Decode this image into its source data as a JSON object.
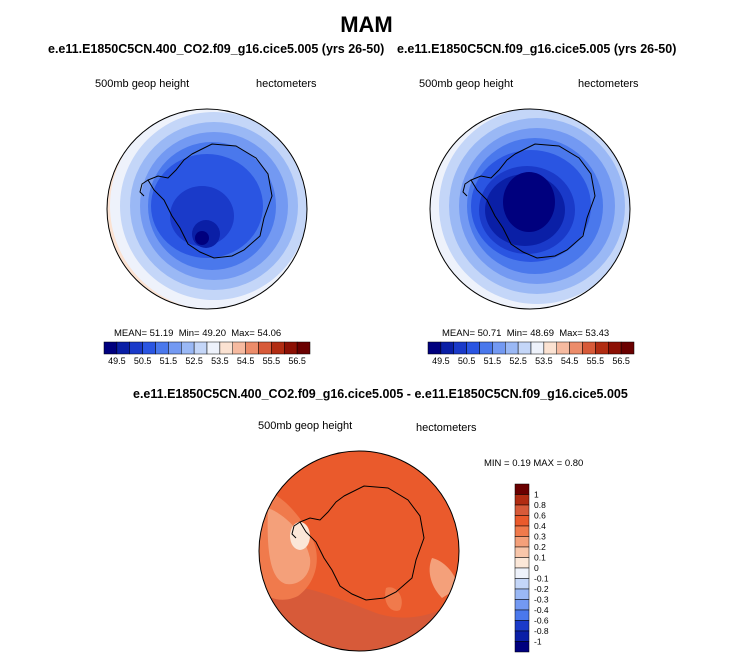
{
  "page": {
    "title": "MAM"
  },
  "panels": [
    {
      "title": "e.e11.E1850C5CN.400_CO2.f09_g16.cice5.005 (yrs 26-50)",
      "left_label": "500mb geop height",
      "right_label": "hectometers",
      "stats": {
        "mean_label": "MEAN=",
        "mean": "51.19",
        "min_label": "Min=",
        "min": "49.20",
        "max_label": "Max=",
        "max": "54.06"
      }
    },
    {
      "title": "e.e11.E1850C5CN.f09_g16.cice5.005 (yrs 26-50)",
      "left_label": "500mb geop height",
      "right_label": "hectometers",
      "stats": {
        "mean_label": "MEAN=",
        "mean": "50.71",
        "min_label": "Min=",
        "min": "48.69",
        "max_label": "Max=",
        "max": "53.43"
      }
    },
    {
      "title": "e.e11.E1850C5CN.400_CO2.f09_g16.cice5.005 - e.e11.E1850C5CN.f09_g16.cice5.005",
      "left_label": "500mb geop height",
      "right_label": "hectometers",
      "stats": {
        "min_label": "MIN =",
        "min": "0.19",
        "max_label": "MAX =",
        "max": "0.80"
      }
    }
  ],
  "chart_data": [
    {
      "type": "heatmap",
      "projection": "south-polar-stereographic",
      "variable": "500mb geop height",
      "units": "hectometers",
      "colorbar_orientation": "horizontal",
      "contour_levels": [
        49.5,
        50,
        50.5,
        51,
        51.5,
        52,
        52.5,
        53,
        53.5,
        54,
        54.5,
        55,
        55.5,
        56,
        56.5
      ],
      "tick_labels": [
        "49.5",
        "50.5",
        "51.5",
        "52.5",
        "53.5",
        "54.5",
        "55.5",
        "56.5"
      ],
      "colors": [
        "#00007e",
        "#0a1fa6",
        "#1a3ac9",
        "#2a55e2",
        "#4a78ec",
        "#7399f2",
        "#9ab8f5",
        "#c4d6f8",
        "#eef2fb",
        "#fbe2d2",
        "#f6baa0",
        "#ec8c6a",
        "#d75a39",
        "#b12c12",
        "#8c1004",
        "#6a0000"
      ],
      "min_value": 49.2,
      "max_value": 54.06,
      "mean_value": 51.19
    },
    {
      "type": "heatmap",
      "projection": "south-polar-stereographic",
      "variable": "500mb geop height",
      "units": "hectometers",
      "colorbar_orientation": "horizontal",
      "contour_levels": [
        49.5,
        50,
        50.5,
        51,
        51.5,
        52,
        52.5,
        53,
        53.5,
        54,
        54.5,
        55,
        55.5,
        56,
        56.5
      ],
      "tick_labels": [
        "49.5",
        "50.5",
        "51.5",
        "52.5",
        "53.5",
        "54.5",
        "55.5",
        "56.5"
      ],
      "colors": [
        "#00007e",
        "#0a1fa6",
        "#1a3ac9",
        "#2a55e2",
        "#4a78ec",
        "#7399f2",
        "#9ab8f5",
        "#c4d6f8",
        "#eef2fb",
        "#fbe2d2",
        "#f6baa0",
        "#ec8c6a",
        "#d75a39",
        "#b12c12",
        "#8c1004",
        "#6a0000"
      ],
      "min_value": 48.69,
      "max_value": 53.43,
      "mean_value": 50.71
    },
    {
      "type": "heatmap",
      "projection": "south-polar-stereographic",
      "variable": "500mb geop height difference",
      "units": "hectometers",
      "colorbar_orientation": "vertical",
      "contour_levels": [
        -1,
        -0.8,
        -0.6,
        -0.4,
        -0.3,
        -0.2,
        -0.1,
        0,
        0.1,
        0.2,
        0.3,
        0.4,
        0.6,
        0.8,
        1
      ],
      "tick_labels": [
        "1",
        "0.8",
        "0.6",
        "0.4",
        "0.3",
        "0.2",
        "0.1",
        "0",
        "-0.1",
        "-0.2",
        "-0.3",
        "-0.4",
        "-0.6",
        "-0.8",
        "-1"
      ],
      "colors": [
        "#6a0000",
        "#b12c12",
        "#d75a39",
        "#ea5a2c",
        "#f07a4c",
        "#f4a07a",
        "#f8c6aa",
        "#fbe7d8",
        "#eef2fb",
        "#c4d6f8",
        "#9ab8f5",
        "#7399f2",
        "#4a78ec",
        "#1a3ac9",
        "#0a1fa6",
        "#00007e"
      ],
      "min_value": 0.19,
      "max_value": 0.8
    }
  ]
}
